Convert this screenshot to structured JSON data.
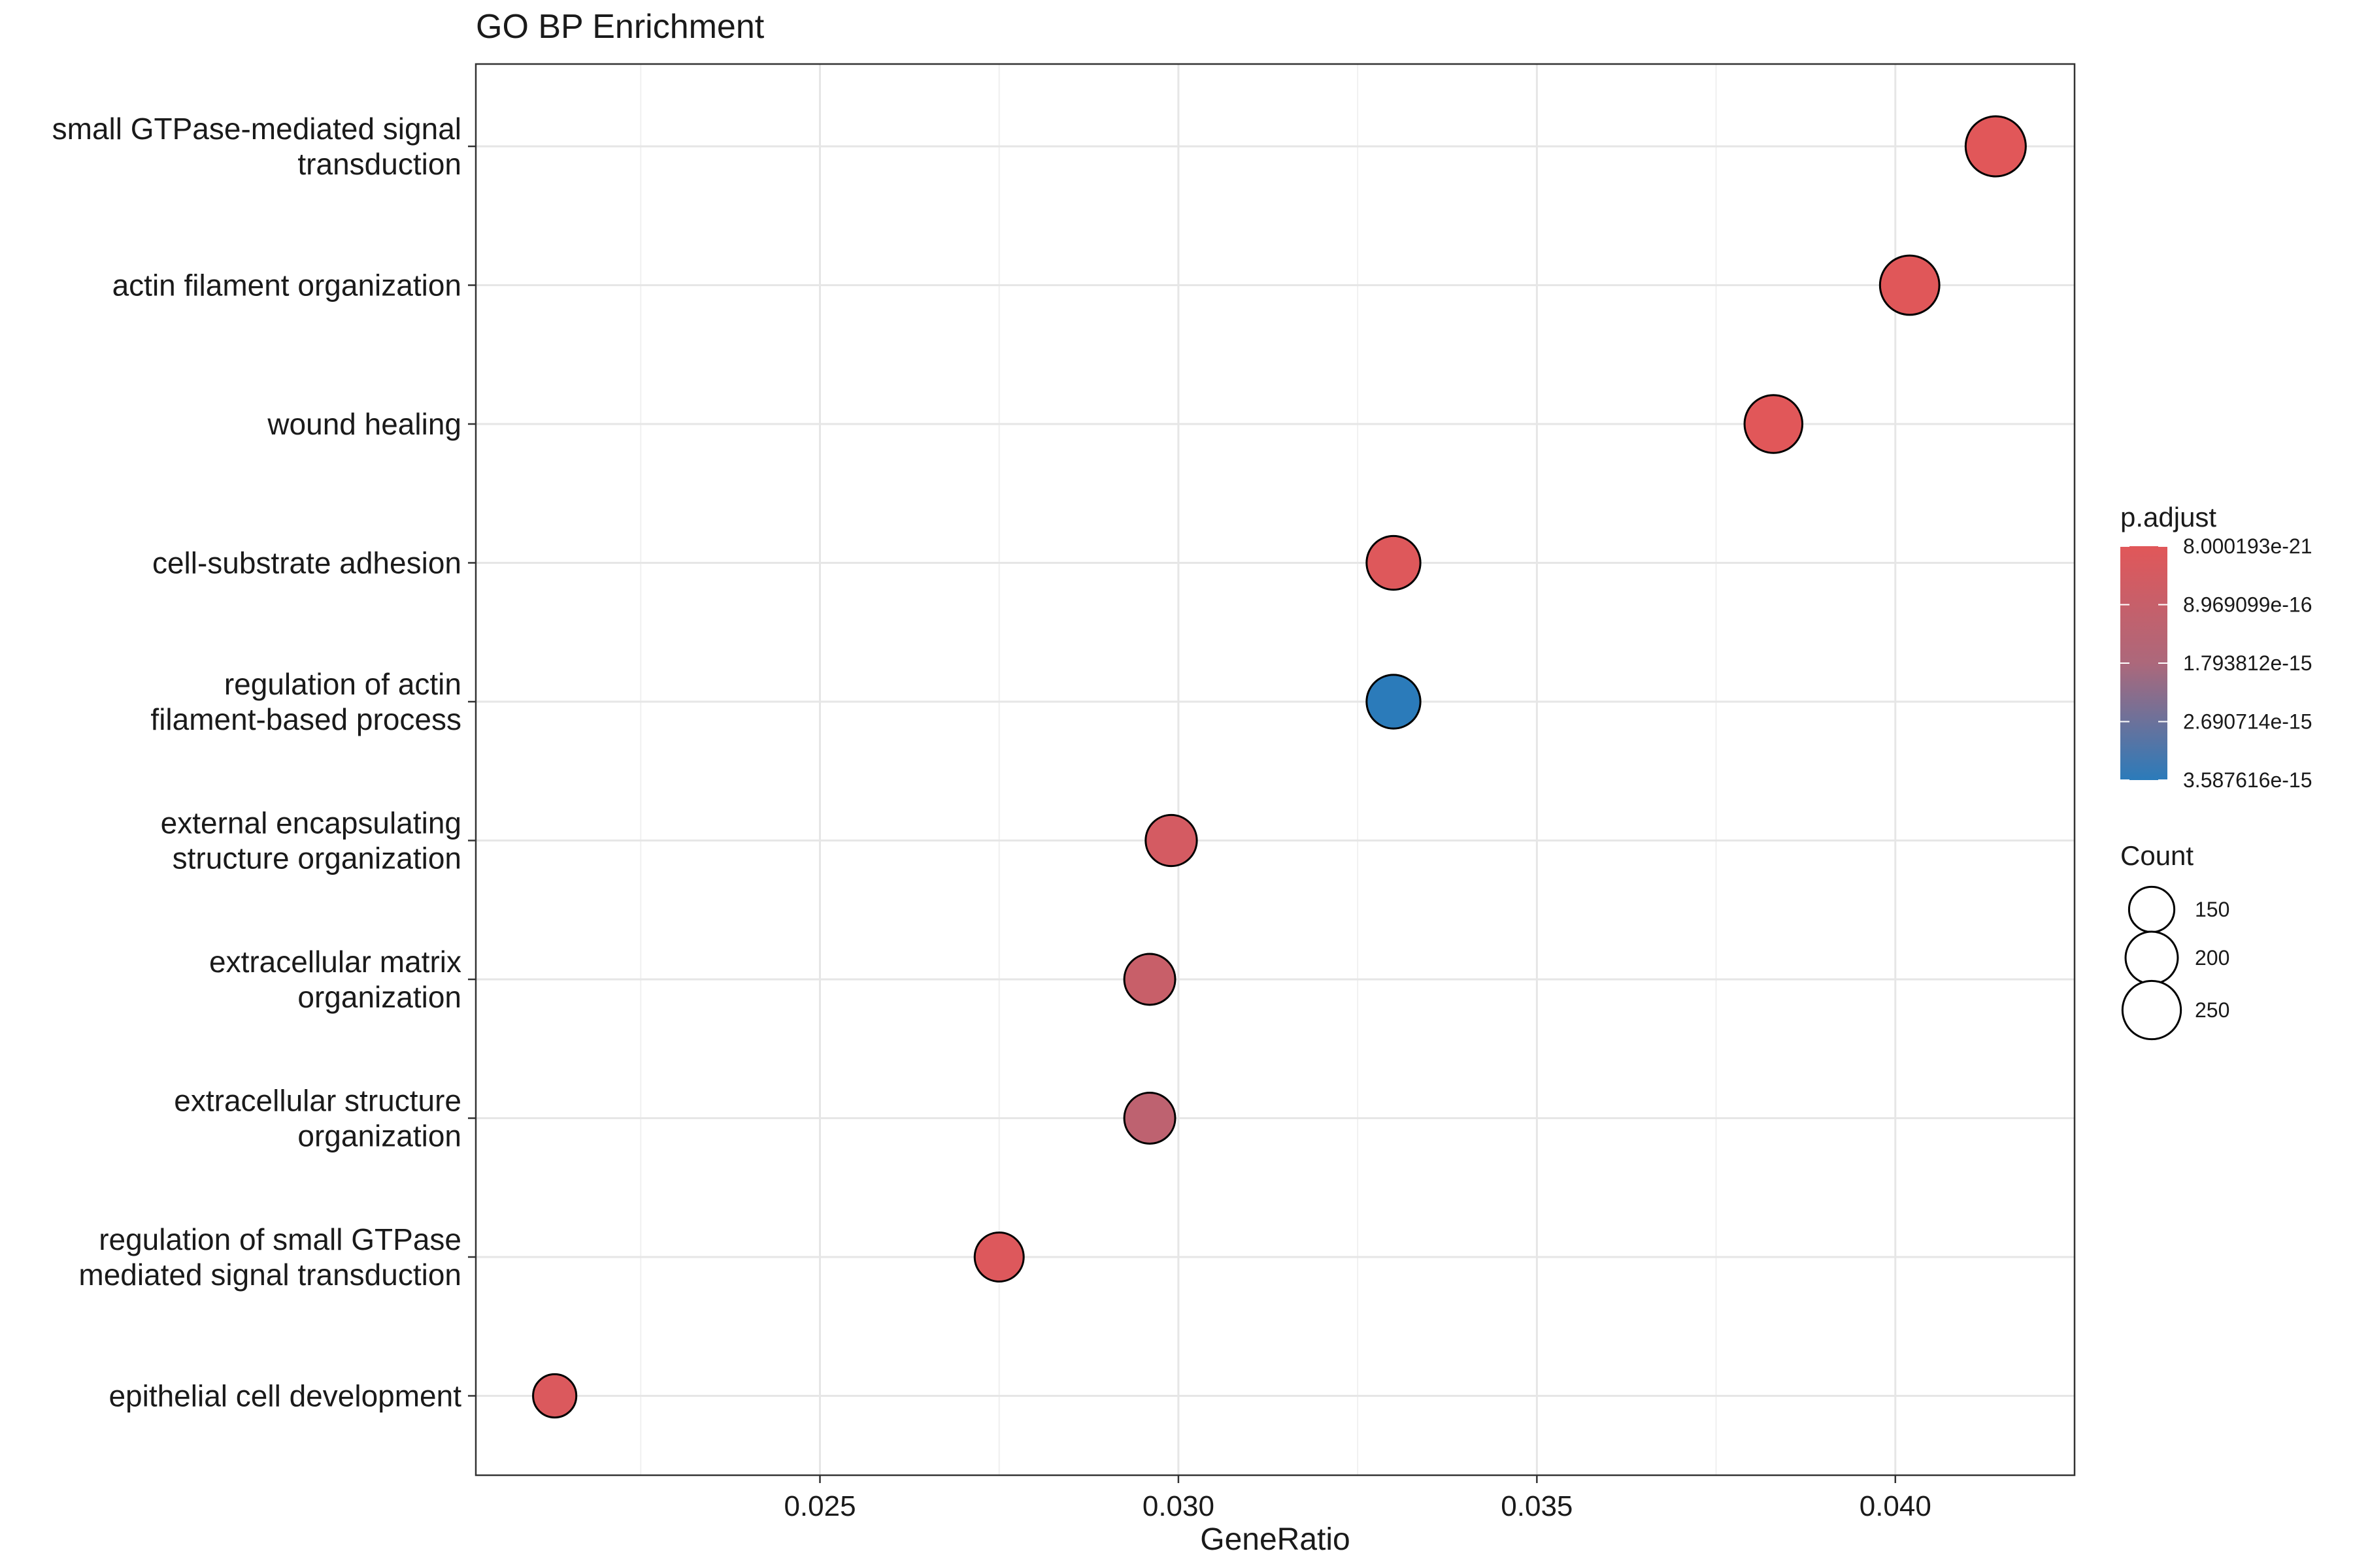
{
  "chart_data": {
    "type": "scatter",
    "title": "GO BP Enrichment",
    "xlabel": "GeneRatio",
    "ylabel": "",
    "xlim": [
      0.0202,
      0.0425
    ],
    "x_ticks": [
      "0.025",
      "0.030",
      "0.035",
      "0.040"
    ],
    "x_tick_values": [
      0.025,
      0.03,
      0.035,
      0.04
    ],
    "grid": true,
    "legend_position": "right",
    "terms": [
      {
        "label_lines": [
          "small GTPase-mediated signal",
          "transduction"
        ],
        "gene_ratio": 0.0414,
        "count": 265,
        "p_adjust": 8e-21
      },
      {
        "label_lines": [
          "actin filament organization"
        ],
        "gene_ratio": 0.0402,
        "count": 258,
        "p_adjust": 2e-17
      },
      {
        "label_lines": [
          "wound healing"
        ],
        "gene_ratio": 0.0383,
        "count": 245,
        "p_adjust": 3e-18
      },
      {
        "label_lines": [
          "cell-substrate adhesion"
        ],
        "gene_ratio": 0.033,
        "count": 212,
        "p_adjust": 1e-16
      },
      {
        "label_lines": [
          "regulation of actin",
          "filament-based process"
        ],
        "gene_ratio": 0.033,
        "count": 212,
        "p_adjust": 3.5876e-15
      },
      {
        "label_lines": [
          "external encapsulating",
          "structure organization"
        ],
        "gene_ratio": 0.0299,
        "count": 192,
        "p_adjust": 4.5e-16
      },
      {
        "label_lines": [
          "extracellular matrix",
          "organization"
        ],
        "gene_ratio": 0.0296,
        "count": 190,
        "p_adjust": 8.5e-16
      },
      {
        "label_lines": [
          "extracellular structure",
          "organization"
        ],
        "gene_ratio": 0.0296,
        "count": 190,
        "p_adjust": 1.2e-15
      },
      {
        "label_lines": [
          "regulation of small GTPase",
          "mediated signal transduction"
        ],
        "gene_ratio": 0.0275,
        "count": 176,
        "p_adjust": 1.5e-16
      },
      {
        "label_lines": [
          "epithelial cell development"
        ],
        "gene_ratio": 0.0213,
        "count": 137,
        "p_adjust": 2e-16
      }
    ],
    "color_legend": {
      "title": "p.adjust",
      "min": 8.000193e-21,
      "max": 3.587616e-15,
      "low_color": "#E15759",
      "high_color": "#2B7BBA",
      "labels": [
        "8.000193e-21",
        "8.969099e-16",
        "1.793812e-15",
        "2.690714e-15",
        "3.587616e-15"
      ]
    },
    "size_legend": {
      "title": "Count",
      "values": [
        150,
        200,
        250
      ],
      "labels": [
        "150",
        "200",
        "250"
      ]
    }
  }
}
